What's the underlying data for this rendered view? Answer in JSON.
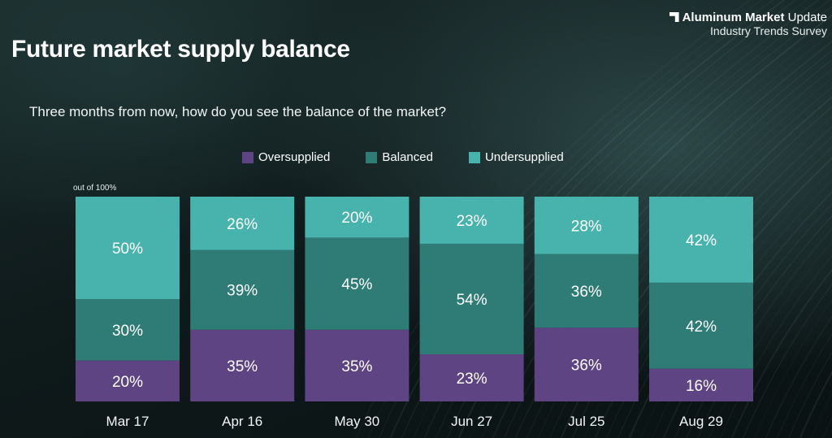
{
  "brand": {
    "title_bold": "Aluminum Market",
    "title_regular": "Update",
    "subtitle": "Industry Trends Survey"
  },
  "header": {
    "title": "Future market supply balance",
    "question": "Three months from now, how do you see the balance of the market?"
  },
  "chart_data": {
    "type": "bar",
    "stacked": true,
    "unit_note": "out of 100%",
    "categories": [
      "Mar 17",
      "Apr 16",
      "May 30",
      "Jun 27",
      "Jul 25",
      "Aug 29"
    ],
    "series": [
      {
        "name": "Oversupplied",
        "color": "#5e4483",
        "values": [
          20,
          35,
          35,
          23,
          36,
          16
        ]
      },
      {
        "name": "Balanced",
        "color": "#2f7b76",
        "values": [
          30,
          39,
          45,
          54,
          36,
          42
        ]
      },
      {
        "name": "Undersupplied",
        "color": "#48b3ad",
        "values": [
          50,
          26,
          20,
          23,
          28,
          42
        ]
      }
    ],
    "value_suffix": "%",
    "ylim": [
      0,
      100
    ],
    "legend_position": "top",
    "grid": false
  }
}
